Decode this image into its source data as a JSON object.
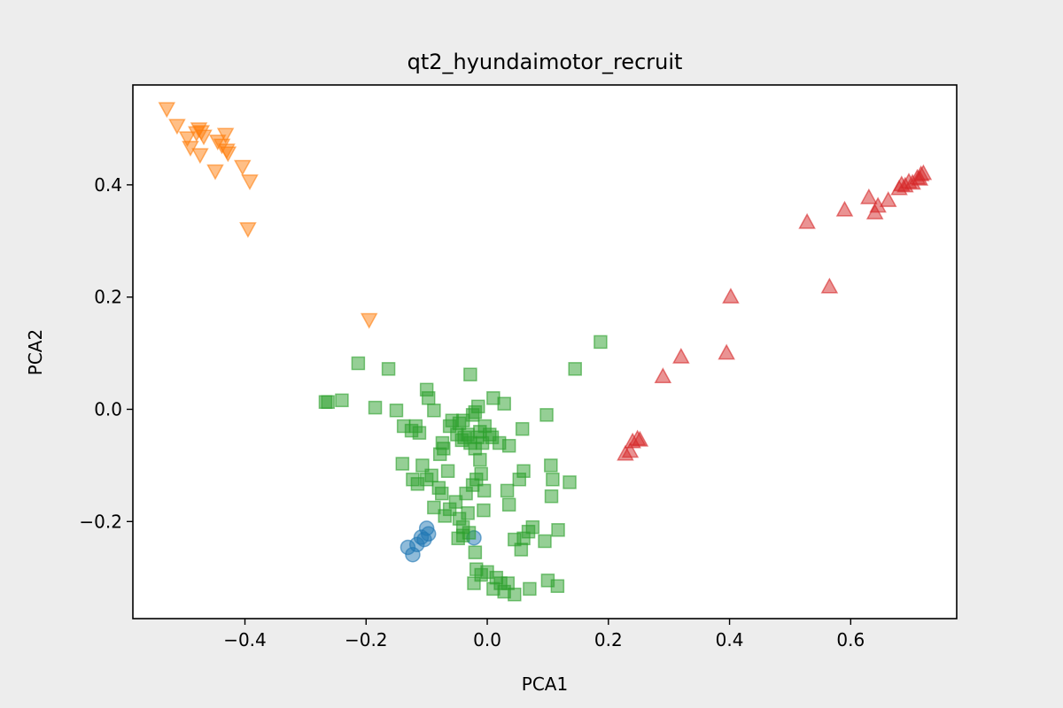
{
  "chart_data": {
    "type": "scatter",
    "title": "qt2_hyundaimotor_recruit",
    "xlabel": "PCA1",
    "ylabel": "PCA2",
    "xlim": [
      -0.585,
      0.775
    ],
    "ylim": [
      -0.373,
      0.578
    ],
    "xticks": [
      -0.4,
      -0.2,
      0.0,
      0.2,
      0.4,
      0.6
    ],
    "yticks": [
      -0.2,
      0.0,
      0.2,
      0.4
    ],
    "xtick_labels": [
      "−0.4",
      "−0.2",
      "0.0",
      "0.2",
      "0.4",
      "0.6"
    ],
    "ytick_labels": [
      "−0.2",
      "0.0",
      "0.2",
      "0.4"
    ],
    "grid": false,
    "legend": "none",
    "series": [
      {
        "marker": "circle",
        "color": "#1f77b4",
        "points": [
          [
            -0.131,
            -0.246
          ],
          [
            -0.123,
            -0.259
          ],
          [
            -0.116,
            -0.241
          ],
          [
            -0.109,
            -0.228
          ],
          [
            -0.104,
            -0.232
          ],
          [
            -0.1,
            -0.212
          ],
          [
            -0.097,
            -0.222
          ],
          [
            -0.022,
            -0.229
          ]
        ]
      },
      {
        "marker": "triangle-down",
        "color": "#ff7f0e",
        "points": [
          [
            -0.529,
            0.536
          ],
          [
            -0.512,
            0.506
          ],
          [
            -0.495,
            0.484
          ],
          [
            -0.49,
            0.467
          ],
          [
            -0.48,
            0.493
          ],
          [
            -0.476,
            0.5
          ],
          [
            -0.472,
            0.495
          ],
          [
            -0.468,
            0.487
          ],
          [
            -0.474,
            0.454
          ],
          [
            -0.445,
            0.478
          ],
          [
            -0.438,
            0.471
          ],
          [
            -0.43,
            0.462
          ],
          [
            -0.432,
            0.49
          ],
          [
            -0.428,
            0.457
          ],
          [
            -0.449,
            0.425
          ],
          [
            -0.404,
            0.433
          ],
          [
            -0.392,
            0.407
          ],
          [
            -0.395,
            0.322
          ],
          [
            -0.195,
            0.16
          ]
        ]
      },
      {
        "marker": "square",
        "color": "#2ca02c",
        "points": [
          [
            -0.267,
            0.013
          ],
          [
            -0.263,
            0.013
          ],
          [
            -0.24,
            0.016
          ],
          [
            -0.213,
            0.082
          ],
          [
            -0.163,
            0.072
          ],
          [
            -0.185,
            0.003
          ],
          [
            -0.15,
            -0.002
          ],
          [
            -0.138,
            -0.03
          ],
          [
            -0.125,
            -0.038
          ],
          [
            -0.118,
            -0.03
          ],
          [
            -0.112,
            -0.042
          ],
          [
            -0.1,
            0.035
          ],
          [
            -0.097,
            0.02
          ],
          [
            -0.088,
            -0.002
          ],
          [
            -0.14,
            -0.097
          ],
          [
            -0.123,
            -0.125
          ],
          [
            -0.115,
            -0.133
          ],
          [
            -0.107,
            -0.1
          ],
          [
            -0.092,
            -0.118
          ],
          [
            -0.08,
            -0.14
          ],
          [
            -0.078,
            -0.08
          ],
          [
            -0.074,
            -0.06
          ],
          [
            -0.072,
            -0.07
          ],
          [
            -0.062,
            -0.03
          ],
          [
            -0.058,
            -0.02
          ],
          [
            -0.05,
            -0.045
          ],
          [
            -0.046,
            -0.025
          ],
          [
            -0.042,
            -0.055
          ],
          [
            -0.038,
            -0.05
          ],
          [
            -0.032,
            -0.045
          ],
          [
            -0.028,
            -0.06
          ],
          [
            -0.024,
            -0.01
          ],
          [
            -0.02,
            -0.07
          ],
          [
            -0.016,
            -0.05
          ],
          [
            -0.012,
            -0.04
          ],
          [
            -0.008,
            -0.06
          ],
          [
            -0.004,
            -0.03
          ],
          [
            0.004,
            -0.045
          ],
          [
            0.008,
            -0.05
          ],
          [
            0.01,
            0.02
          ],
          [
            0.02,
            -0.06
          ],
          [
            0.028,
            0.01
          ],
          [
            0.036,
            -0.065
          ],
          [
            0.058,
            -0.035
          ],
          [
            0.098,
            -0.01
          ],
          [
            0.105,
            -0.1
          ],
          [
            0.108,
            -0.125
          ],
          [
            0.136,
            -0.13
          ],
          [
            0.145,
            0.072
          ],
          [
            0.187,
            0.12
          ],
          [
            -0.028,
            0.062
          ],
          [
            -0.04,
            -0.02
          ],
          [
            -0.015,
            0.005
          ],
          [
            -0.088,
            -0.175
          ],
          [
            -0.07,
            -0.19
          ],
          [
            -0.062,
            -0.178
          ],
          [
            -0.052,
            -0.165
          ],
          [
            -0.046,
            -0.195
          ],
          [
            -0.04,
            -0.21
          ],
          [
            -0.032,
            -0.185
          ],
          [
            -0.024,
            -0.135
          ],
          [
            -0.018,
            -0.125
          ],
          [
            -0.01,
            -0.115
          ],
          [
            -0.006,
            -0.18
          ],
          [
            -0.048,
            -0.23
          ],
          [
            -0.04,
            -0.225
          ],
          [
            -0.03,
            -0.22
          ],
          [
            -0.02,
            -0.255
          ],
          [
            0.033,
            -0.145
          ],
          [
            0.06,
            -0.23
          ],
          [
            0.068,
            -0.218
          ],
          [
            0.075,
            -0.21
          ],
          [
            0.056,
            -0.25
          ],
          [
            0.095,
            -0.235
          ],
          [
            0.106,
            -0.155
          ],
          [
            0.117,
            -0.215
          ],
          [
            -0.018,
            -0.285
          ],
          [
            -0.022,
            -0.31
          ],
          [
            -0.01,
            -0.295
          ],
          [
            0.01,
            -0.32
          ],
          [
            0.015,
            -0.3
          ],
          [
            0.022,
            -0.31
          ],
          [
            0.028,
            -0.325
          ],
          [
            0.034,
            -0.31
          ],
          [
            0.045,
            -0.33
          ],
          [
            0.07,
            -0.32
          ],
          [
            0.1,
            -0.305
          ],
          [
            0.116,
            -0.315
          ],
          [
            0.0,
            -0.29
          ],
          [
            0.045,
            -0.232
          ],
          [
            0.036,
            -0.17
          ],
          [
            0.053,
            -0.125
          ],
          [
            -0.075,
            -0.15
          ],
          [
            -0.1,
            -0.125
          ],
          [
            -0.012,
            -0.09
          ],
          [
            0.06,
            -0.11
          ],
          [
            -0.005,
            -0.145
          ],
          [
            -0.035,
            -0.15
          ],
          [
            -0.065,
            -0.11
          ],
          [
            -0.02,
            -0.005
          ]
        ]
      },
      {
        "marker": "triangle-up",
        "color": "#d62728",
        "points": [
          [
            0.228,
            -0.08
          ],
          [
            0.236,
            -0.075
          ],
          [
            0.24,
            -0.058
          ],
          [
            0.248,
            -0.053
          ],
          [
            0.252,
            -0.055
          ],
          [
            0.29,
            0.058
          ],
          [
            0.32,
            0.093
          ],
          [
            0.395,
            0.1
          ],
          [
            0.402,
            0.2
          ],
          [
            0.528,
            0.333
          ],
          [
            0.565,
            0.218
          ],
          [
            0.59,
            0.355
          ],
          [
            0.63,
            0.377
          ],
          [
            0.64,
            0.35
          ],
          [
            0.645,
            0.362
          ],
          [
            0.662,
            0.372
          ],
          [
            0.68,
            0.393
          ],
          [
            0.684,
            0.4
          ],
          [
            0.69,
            0.398
          ],
          [
            0.696,
            0.405
          ],
          [
            0.702,
            0.403
          ],
          [
            0.71,
            0.412
          ],
          [
            0.716,
            0.418
          ],
          [
            0.72,
            0.42
          ],
          [
            0.714,
            0.41
          ]
        ]
      }
    ]
  }
}
